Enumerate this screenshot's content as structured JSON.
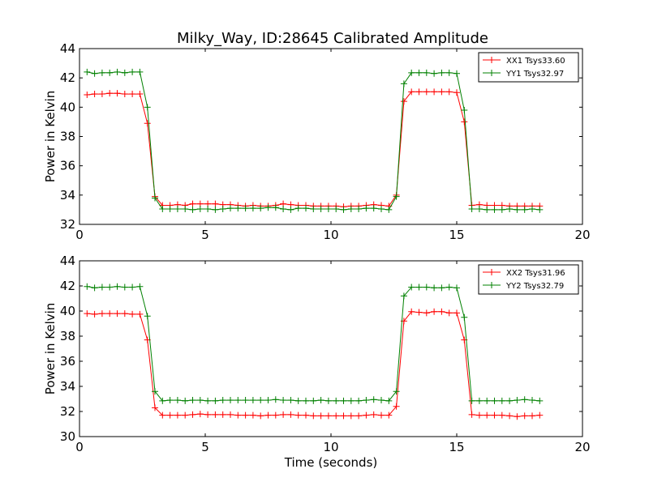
{
  "chart_data": [
    {
      "type": "line",
      "title": "Milky_Way, ID:28645 Calibrated Amplitude",
      "xlabel": "",
      "ylabel": "Power in Kelvin",
      "xlim": [
        0,
        20
      ],
      "ylim": [
        32,
        44
      ],
      "xticks": [
        "0",
        "5",
        "10",
        "15",
        "20"
      ],
      "yticks": [
        "32",
        "34",
        "36",
        "38",
        "40",
        "42",
        "44"
      ],
      "legend_position": "top-right",
      "grid": false,
      "x": [
        0.3,
        0.6,
        0.9,
        1.2,
        1.5,
        1.8,
        2.1,
        2.4,
        2.7,
        3.0,
        3.3,
        3.6,
        3.9,
        4.2,
        4.5,
        4.8,
        5.1,
        5.4,
        5.7,
        6.0,
        6.3,
        6.6,
        6.9,
        7.2,
        7.5,
        7.8,
        8.1,
        8.4,
        8.7,
        9.0,
        9.3,
        9.6,
        9.9,
        10.2,
        10.5,
        10.8,
        11.1,
        11.4,
        11.7,
        12.0,
        12.3,
        12.6,
        12.9,
        13.2,
        13.5,
        13.8,
        14.1,
        14.4,
        14.7,
        15.0,
        15.3,
        15.6,
        15.9,
        16.2,
        16.5,
        16.8,
        17.1,
        17.4,
        17.7,
        18.0,
        18.3
      ],
      "series": [
        {
          "name": "XX1 Tsys33.60",
          "color": "#ff0000",
          "values": [
            40.85,
            40.9,
            40.9,
            40.95,
            40.95,
            40.9,
            40.9,
            40.9,
            38.9,
            33.9,
            33.3,
            33.3,
            33.35,
            33.3,
            33.4,
            33.4,
            33.4,
            33.4,
            33.35,
            33.35,
            33.3,
            33.25,
            33.3,
            33.25,
            33.25,
            33.3,
            33.4,
            33.35,
            33.3,
            33.3,
            33.25,
            33.25,
            33.25,
            33.25,
            33.2,
            33.25,
            33.25,
            33.3,
            33.35,
            33.3,
            33.25,
            34.0,
            40.4,
            41.05,
            41.05,
            41.05,
            41.05,
            41.05,
            41.05,
            41.0,
            39.0,
            33.3,
            33.35,
            33.3,
            33.3,
            33.3,
            33.25,
            33.25,
            33.25,
            33.25,
            33.25
          ]
        },
        {
          "name": "YY1 Tsys32.97",
          "color": "#008000",
          "values": [
            42.4,
            42.3,
            42.35,
            42.35,
            42.4,
            42.35,
            42.4,
            42.4,
            40.0,
            33.8,
            33.05,
            33.05,
            33.05,
            33.05,
            33.0,
            33.05,
            33.05,
            33.0,
            33.05,
            33.1,
            33.1,
            33.1,
            33.1,
            33.1,
            33.15,
            33.15,
            33.05,
            33.0,
            33.1,
            33.1,
            33.05,
            33.05,
            33.05,
            33.05,
            33.0,
            33.05,
            33.05,
            33.1,
            33.1,
            33.05,
            33.0,
            33.9,
            41.6,
            42.35,
            42.35,
            42.35,
            42.3,
            42.35,
            42.35,
            42.3,
            39.8,
            33.05,
            33.05,
            33.0,
            33.0,
            33.0,
            33.05,
            33.0,
            33.0,
            33.05,
            33.0
          ]
        }
      ]
    },
    {
      "type": "line",
      "title": "",
      "xlabel": "Time (seconds)",
      "ylabel": "Power in Kelvin",
      "xlim": [
        0,
        20
      ],
      "ylim": [
        30,
        44
      ],
      "xticks": [
        "0",
        "5",
        "10",
        "15",
        "20"
      ],
      "yticks": [
        "30",
        "32",
        "34",
        "36",
        "38",
        "40",
        "42",
        "44"
      ],
      "legend_position": "top-right",
      "grid": false,
      "x": [
        0.3,
        0.6,
        0.9,
        1.2,
        1.5,
        1.8,
        2.1,
        2.4,
        2.7,
        3.0,
        3.3,
        3.6,
        3.9,
        4.2,
        4.5,
        4.8,
        5.1,
        5.4,
        5.7,
        6.0,
        6.3,
        6.6,
        6.9,
        7.2,
        7.5,
        7.8,
        8.1,
        8.4,
        8.7,
        9.0,
        9.3,
        9.6,
        9.9,
        10.2,
        10.5,
        10.8,
        11.1,
        11.4,
        11.7,
        12.0,
        12.3,
        12.6,
        12.9,
        13.2,
        13.5,
        13.8,
        14.1,
        14.4,
        14.7,
        15.0,
        15.3,
        15.6,
        15.9,
        16.2,
        16.5,
        16.8,
        17.1,
        17.4,
        17.7,
        18.0,
        18.3
      ],
      "series": [
        {
          "name": "XX2 Tsys31.96",
          "color": "#ff0000",
          "values": [
            39.8,
            39.75,
            39.8,
            39.8,
            39.8,
            39.8,
            39.75,
            39.75,
            37.7,
            32.3,
            31.7,
            31.7,
            31.7,
            31.7,
            31.75,
            31.8,
            31.75,
            31.75,
            31.75,
            31.75,
            31.7,
            31.7,
            31.7,
            31.65,
            31.7,
            31.7,
            31.75,
            31.75,
            31.7,
            31.7,
            31.65,
            31.65,
            31.65,
            31.65,
            31.65,
            31.65,
            31.65,
            31.7,
            31.75,
            31.7,
            31.7,
            32.4,
            39.2,
            39.95,
            39.9,
            39.85,
            39.95,
            39.95,
            39.85,
            39.85,
            37.7,
            31.75,
            31.7,
            31.7,
            31.7,
            31.7,
            31.65,
            31.6,
            31.65,
            31.65,
            31.7
          ]
        },
        {
          "name": "YY2 Tsys32.79",
          "color": "#008000",
          "values": [
            41.95,
            41.85,
            41.9,
            41.9,
            41.95,
            41.9,
            41.9,
            41.95,
            39.6,
            33.6,
            32.85,
            32.9,
            32.9,
            32.85,
            32.9,
            32.9,
            32.85,
            32.85,
            32.9,
            32.9,
            32.9,
            32.9,
            32.9,
            32.9,
            32.9,
            32.95,
            32.9,
            32.9,
            32.85,
            32.85,
            32.85,
            32.9,
            32.85,
            32.85,
            32.85,
            32.85,
            32.85,
            32.9,
            32.95,
            32.9,
            32.85,
            33.6,
            41.2,
            41.9,
            41.9,
            41.9,
            41.85,
            41.85,
            41.9,
            41.85,
            39.5,
            32.85,
            32.85,
            32.85,
            32.85,
            32.85,
            32.85,
            32.9,
            32.95,
            32.9,
            32.85
          ]
        }
      ]
    }
  ]
}
